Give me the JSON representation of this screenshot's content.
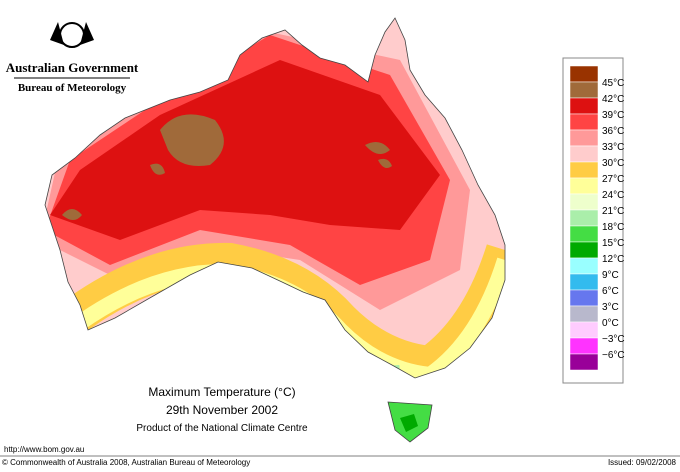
{
  "header": {
    "government": "Australian Government",
    "bureau": "Bureau of Meteorology"
  },
  "legend": {
    "labels": [
      "45°C",
      "42°C",
      "39°C",
      "36°C",
      "33°C",
      "30°C",
      "27°C",
      "24°C",
      "21°C",
      "18°C",
      "15°C",
      "12°C",
      "9°C",
      "6°C",
      "3°C",
      "0°C",
      "−3°C",
      "−6°C"
    ],
    "colors": [
      "#993300",
      "#a06a3a",
      "#dd1111",
      "#ff4444",
      "#ff9999",
      "#ffcccc",
      "#ffcc44",
      "#ffff99",
      "#eeffcc",
      "#aaeeaa",
      "#44dd44",
      "#00aa00",
      "#99ffff",
      "#33bbee",
      "#6677ee",
      "#b8b8cc",
      "#ffccff",
      "#ff33ff",
      "#990099"
    ]
  },
  "title": {
    "line1": "Maximum Temperature (°C)",
    "line2": "29th November 2002",
    "line3": "Product of the National Climate Centre"
  },
  "footer": {
    "url": "http://www.bom.gov.au",
    "copyright": "© Commonwealth of Australia 2008, Australian Bureau of Meteorology",
    "issued": "Issued: 09/02/2008"
  }
}
